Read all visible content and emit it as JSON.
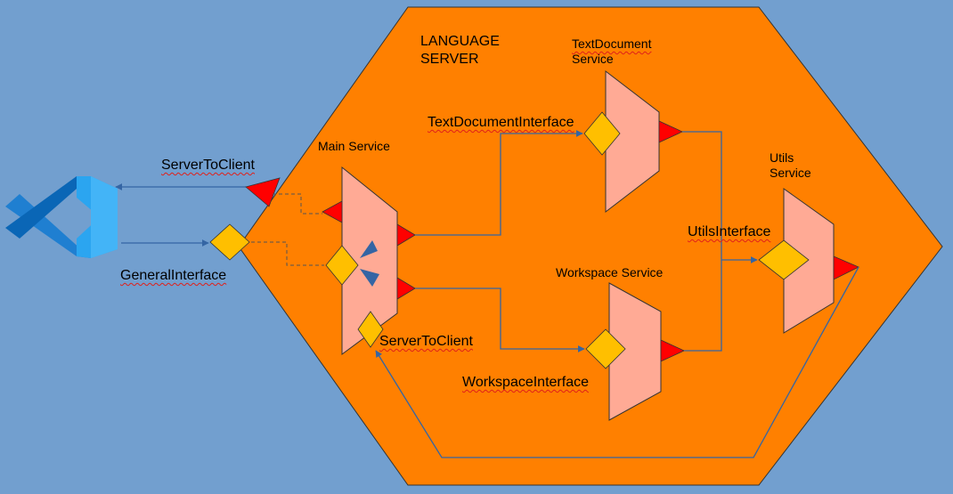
{
  "colors": {
    "background": "#729fcf",
    "hexagon": "#ff8000",
    "service": "#ffaa95",
    "interface": "#ffbf00",
    "port": "#ff0000",
    "connector": "#3465a4",
    "vscode_light": "#2ba5f0",
    "vscode_dark": "#0a66b6"
  },
  "diagram": {
    "title_line1": "LANGUAGE",
    "title_line2": "SERVER",
    "main_service": "Main Service",
    "textdocument_service_line1": "TextDocument",
    "textdocument_service_line2": "Service",
    "utils_service_line1": "Utils",
    "utils_service_line2": "Service",
    "workspace_service": "Workspace Service",
    "server_to_client_outer": "ServerToClient",
    "general_interface": "GeneralInterface",
    "textdocument_interface": "TextDocumentInterface",
    "utils_interface": "UtilsInterface",
    "server_to_client_inner": "ServerToClient",
    "workspace_interface": "WorkspaceInterface"
  },
  "icons": {
    "client_logo": "vscode-icon"
  }
}
